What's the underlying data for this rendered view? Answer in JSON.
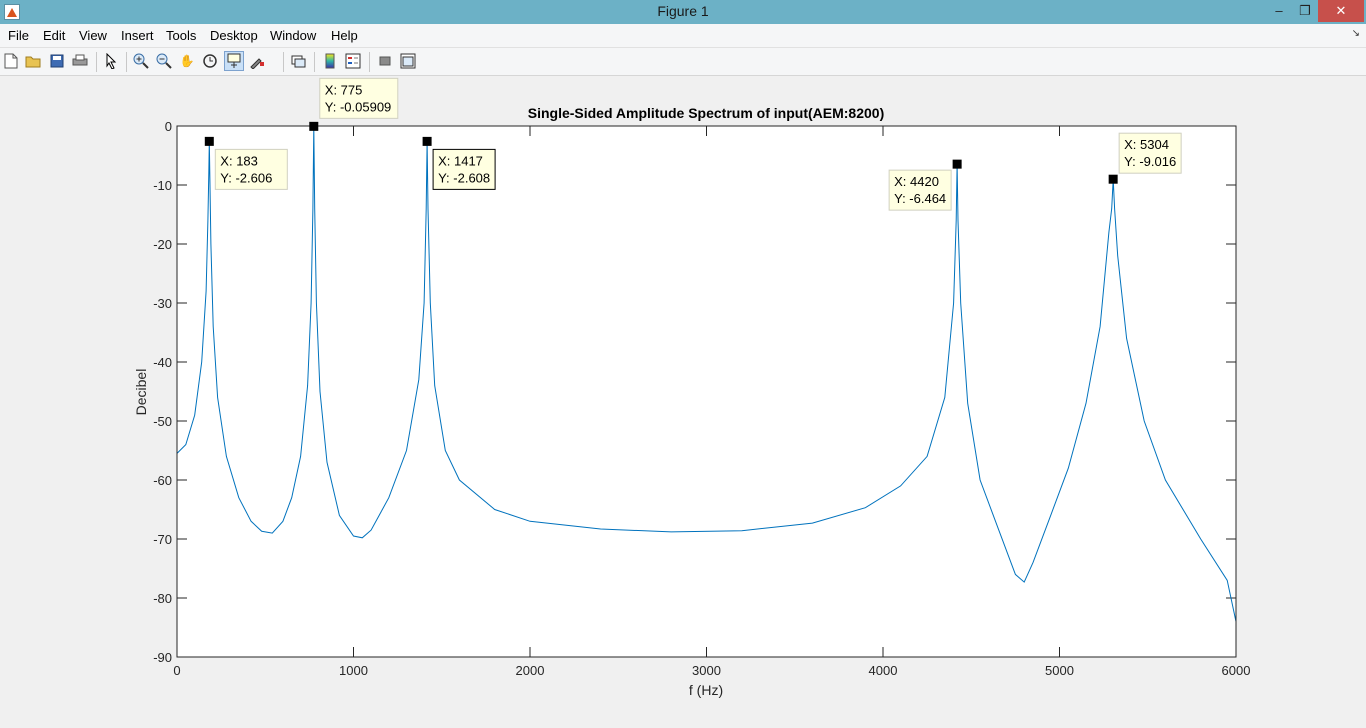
{
  "window": {
    "title": "Figure 1",
    "min_glyph": "–",
    "max_glyph": "❐",
    "close_glyph": "✕"
  },
  "menu": [
    "File",
    "Edit",
    "View",
    "Insert",
    "Tools",
    "Desktop",
    "Window",
    "Help"
  ],
  "toolbar": {
    "icons": [
      "new-figure-icon",
      "open-file-icon",
      "save-icon",
      "print-icon",
      "edit-plot-icon",
      "zoom-in-icon",
      "zoom-out-icon",
      "pan-icon",
      "rotate-3d-icon",
      "data-cursor-icon",
      "brush-icon",
      "link-plot-icon",
      "colorbar-icon",
      "legend-icon",
      "hide-plot-tools-icon",
      "show-plot-tools-icon"
    ],
    "active": "data-cursor-icon"
  },
  "colors": {
    "line": "#0072bd",
    "datatip_bg": "#ffffe1",
    "titlebar": "#6cb1c6",
    "close": "#c7504b"
  },
  "chart_data": {
    "type": "line",
    "title": "Single-Sided Amplitude Spectrum of input(AEM:8200)",
    "xlabel": "f (Hz)",
    "ylabel": "Decibel",
    "xlim": [
      0,
      6000
    ],
    "ylim": [
      -90,
      0
    ],
    "xticks": [
      0,
      1000,
      2000,
      3000,
      4000,
      5000,
      6000
    ],
    "yticks": [
      0,
      -10,
      -20,
      -30,
      -40,
      -50,
      -60,
      -70,
      -80,
      -90
    ],
    "grid": false,
    "series": [
      {
        "x": [
          0,
          50,
          100,
          140,
          165,
          175,
          180,
          183,
          186,
          192,
          205,
          230,
          280,
          350,
          420,
          480,
          540,
          600,
          650,
          700,
          740,
          760,
          770,
          775,
          780,
          790,
          810,
          850,
          920,
          1000,
          1050,
          1100,
          1200,
          1300,
          1370,
          1400,
          1412,
          1417,
          1422,
          1435,
          1460,
          1520,
          1600,
          1800,
          2000,
          2400,
          2800,
          3200,
          3600,
          3900,
          4100,
          4250,
          4350,
          4400,
          4415,
          4420,
          4425,
          4440,
          4480,
          4550,
          4650,
          4750,
          4800,
          4850,
          4950,
          5050,
          5150,
          5230,
          5280,
          5296,
          5304,
          5312,
          5330,
          5380,
          5480,
          5600,
          5800,
          5950,
          6000
        ],
        "y": [
          -55.5,
          -54,
          -49,
          -40,
          -28,
          -16,
          -8,
          -2.606,
          -8,
          -20,
          -34,
          -46,
          -56,
          -63,
          -67,
          -68.7,
          -69,
          -67,
          -63,
          -56,
          -44,
          -30,
          -14,
          -0.05909,
          -14,
          -30,
          -45,
          -57,
          -66,
          -69.5,
          -69.8,
          -68.5,
          -63,
          -55,
          -43,
          -30,
          -14,
          -2.608,
          -14,
          -30,
          -44,
          -55,
          -60,
          -65,
          -67,
          -68.3,
          -68.8,
          -68.6,
          -67.3,
          -64.7,
          -61,
          -56,
          -46,
          -30,
          -16,
          -6.464,
          -16,
          -30,
          -47,
          -60,
          -68,
          -76,
          -77.3,
          -74,
          -66,
          -58,
          -47,
          -34,
          -18,
          -14,
          -9.016,
          -14,
          -22,
          -36,
          -50,
          -60,
          -70,
          -77,
          -84
        ]
      }
    ],
    "datatips": [
      {
        "x_text": "X: 183",
        "y_text": "Y: -2.606",
        "x": 183,
        "y": -2.606
      },
      {
        "x_text": "X: 775",
        "y_text": "Y: -0.05909",
        "x": 775,
        "y": -0.05909
      },
      {
        "x_text": "X: 1417",
        "y_text": "Y: -2.608",
        "x": 1417,
        "y": -2.608
      },
      {
        "x_text": "X: 4420",
        "y_text": "Y: -6.464",
        "x": 4420,
        "y": -6.464
      },
      {
        "x_text": "X: 5304",
        "y_text": "Y: -9.016",
        "x": 5304,
        "y": -9.016
      }
    ]
  }
}
